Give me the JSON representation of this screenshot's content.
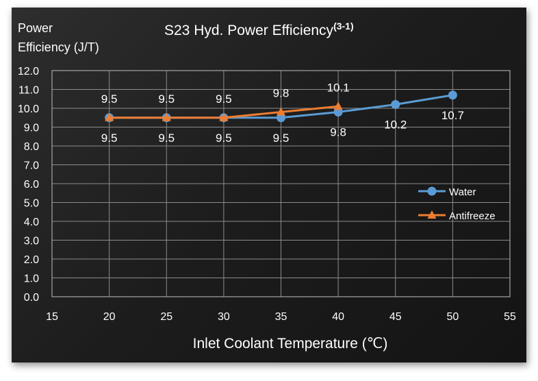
{
  "chart_data": {
    "type": "line",
    "title": "S23 Hyd. Power Efficiency",
    "title_superscript": "(3-1)",
    "ylabel_line1": "Power",
    "ylabel_line2": "Efficiency (J/T)",
    "xlabel": "Inlet Coolant Temperature (℃)",
    "xlim": [
      15,
      55
    ],
    "ylim": [
      0,
      12
    ],
    "xticks": [
      "15",
      "20",
      "25",
      "30",
      "35",
      "40",
      "45",
      "50",
      "55"
    ],
    "yticks": [
      "0.0",
      "1.0",
      "2.0",
      "3.0",
      "4.0",
      "5.0",
      "6.0",
      "7.0",
      "8.0",
      "9.0",
      "10.0",
      "11.0",
      "12.0"
    ],
    "grid": true,
    "legend_position": "right",
    "background": "#1e1e1e",
    "series": [
      {
        "name": "Water",
        "color": "#5b9bd5",
        "marker": "circle",
        "label_position": "below",
        "x": [
          20,
          25,
          30,
          35,
          40,
          45,
          50
        ],
        "y": [
          9.5,
          9.5,
          9.5,
          9.5,
          9.8,
          10.2,
          10.7
        ],
        "labels": [
          "9.5",
          "9.5",
          "9.5",
          "9.5",
          "9.8",
          "10.2",
          "10.7"
        ]
      },
      {
        "name": "Antifreeze",
        "color": "#ed7d31",
        "marker": "triangle",
        "label_position": "above",
        "x": [
          20,
          25,
          30,
          35,
          40
        ],
        "y": [
          9.5,
          9.5,
          9.5,
          9.8,
          10.1
        ],
        "labels": [
          "9.5",
          "9.5",
          "9.5",
          "9.8",
          "10.1"
        ]
      }
    ]
  }
}
